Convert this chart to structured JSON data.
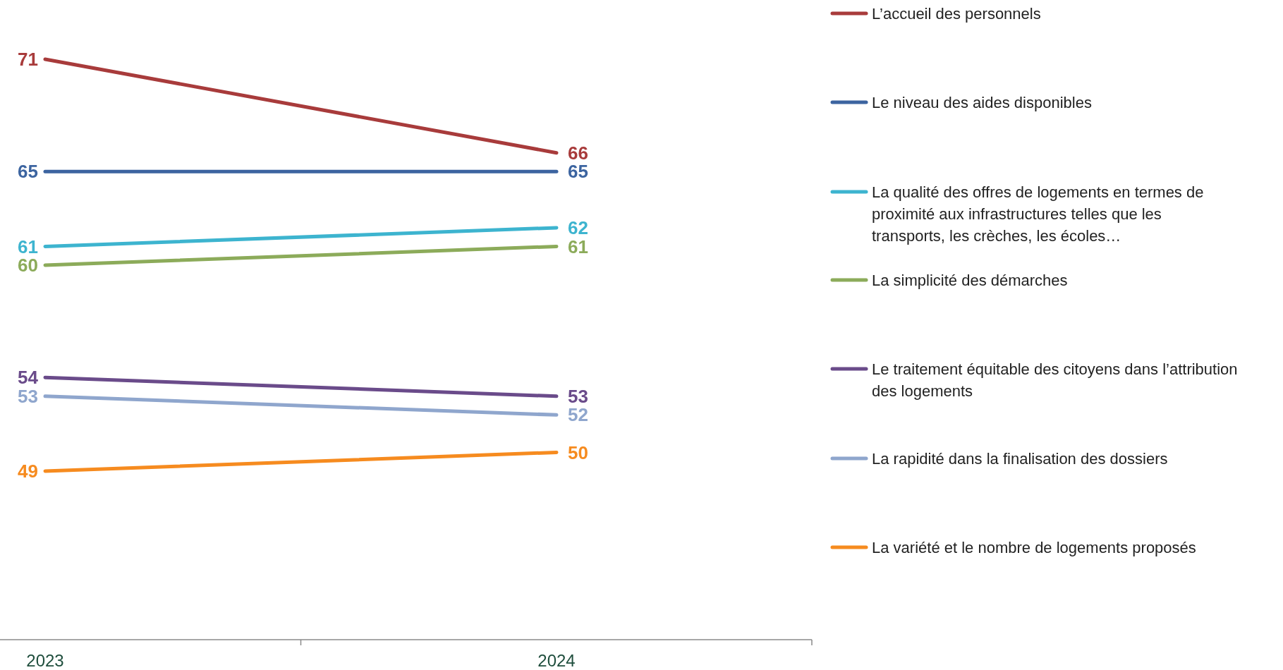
{
  "chart_data": {
    "type": "line",
    "categories": [
      "2023",
      "2024"
    ],
    "data_labels": true,
    "legend": "right",
    "series": [
      {
        "name": "L’accueil des personnels",
        "color": "#a83b3b",
        "values": [
          71,
          66
        ]
      },
      {
        "name": "Le niveau des aides disponibles",
        "color": "#3c64a0",
        "values": [
          65,
          65
        ]
      },
      {
        "name": "La qualité des offres de logements en termes de proximité aux infrastructures telles que les transports, les crèches, les écoles…",
        "color": "#3db4cf",
        "values": [
          61,
          62
        ]
      },
      {
        "name": "La simplicité des démarches",
        "color": "#8cab5a",
        "values": [
          60,
          61
        ]
      },
      {
        "name": "Le traitement équitable des citoyens dans l’attribution des logements",
        "color": "#6a4b8a",
        "values": [
          54,
          53
        ]
      },
      {
        "name": "La rapidité dans la finalisation des dossiers",
        "color": "#8fa6cd",
        "values": [
          53,
          52
        ]
      },
      {
        "name": "La variété et le nombre de logements proposés",
        "color": "#f68b1f",
        "values": [
          49,
          50
        ]
      }
    ]
  }
}
